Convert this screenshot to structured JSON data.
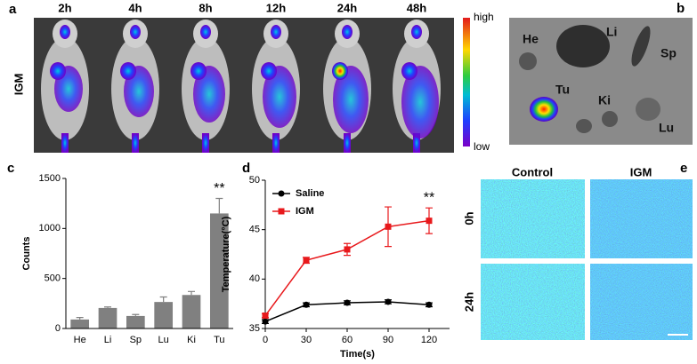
{
  "panel_labels": [
    "a",
    "b",
    "c",
    "d",
    "e"
  ],
  "panel_a": {
    "times": [
      "2h",
      "4h",
      "8h",
      "12h",
      "24h",
      "48h"
    ],
    "row_label": "IGM",
    "colorbar_high": "high",
    "colorbar_low": "low"
  },
  "panel_b": {
    "organs": [
      "He",
      "Li",
      "Sp",
      "Tu",
      "Ki",
      "Lu"
    ]
  },
  "panel_e": {
    "columns": [
      "Control",
      "IGM"
    ],
    "rows": [
      "0h",
      "24h"
    ]
  },
  "chart_data": [
    {
      "type": "bar",
      "categories": [
        "He",
        "Li",
        "Sp",
        "Lu",
        "Ki",
        "Tu"
      ],
      "values": [
        90,
        205,
        125,
        265,
        335,
        1150
      ],
      "errors": [
        20,
        10,
        15,
        50,
        35,
        150
      ],
      "color": "#808080",
      "ylabel": "Counts",
      "ylim": [
        0,
        1500
      ],
      "yticks": [
        0,
        500,
        1000,
        1500
      ],
      "annotation": "**"
    },
    {
      "type": "line",
      "x": [
        0,
        30,
        60,
        90,
        120
      ],
      "xlabel": "Time(s)",
      "ylabel": "Temperature(°C)",
      "xlim": [
        0,
        135
      ],
      "xticks": [
        0,
        30,
        60,
        90,
        120
      ],
      "ylim": [
        35,
        50
      ],
      "yticks": [
        35,
        40,
        45,
        50
      ],
      "annotation": "**",
      "series": [
        {
          "name": "Saline",
          "color": "#000000",
          "marker": "circle",
          "values": [
            35.7,
            37.4,
            37.6,
            37.7,
            37.4
          ],
          "errors": [
            0.2,
            0.2,
            0.2,
            0.2,
            0.2
          ]
        },
        {
          "name": "IGM",
          "color": "#e8191c",
          "marker": "square",
          "values": [
            36.3,
            41.9,
            43.0,
            45.3,
            45.9
          ],
          "errors": [
            0.2,
            0.3,
            0.6,
            2.0,
            1.3
          ]
        }
      ]
    }
  ]
}
